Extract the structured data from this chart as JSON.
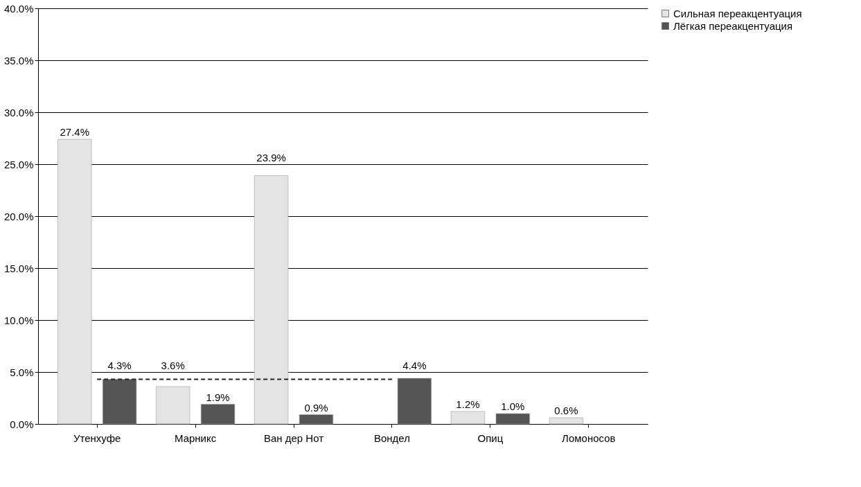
{
  "chart_data": {
    "type": "bar",
    "categories": [
      "Утенхуфе",
      "Марникс",
      "Ван дер Нот",
      "Вондел",
      "Опиц",
      "Ломоносов"
    ],
    "series": [
      {
        "name": "Сильная переакцентуация",
        "color": "#e4e4e4",
        "values": [
          27.4,
          3.6,
          23.9,
          null,
          1.2,
          0.6
        ],
        "value_labels": [
          "27.4%",
          "3.6%",
          "23.9%",
          null,
          "1.2%",
          "0.6%"
        ]
      },
      {
        "name": "Лёгкая переакцентуация",
        "color": "#555555",
        "values": [
          4.3,
          1.9,
          0.9,
          4.4,
          1.0,
          null
        ],
        "value_labels": [
          "4.3%",
          "1.9%",
          "0.9%",
          "4.4%",
          "1.0%",
          null
        ]
      },
      {
        "type": "line",
        "color": "#222222",
        "line_style": "dashed",
        "values": [
          4.3,
          4.3,
          4.3,
          4.3,
          null,
          null
        ]
      }
    ],
    "ylim": [
      0,
      40
    ],
    "yticks": [
      {
        "value": 0,
        "label": "0.0%"
      },
      {
        "value": 5,
        "label": "5.0%"
      },
      {
        "value": 10,
        "label": "10.0%"
      },
      {
        "value": 15,
        "label": "15.0%"
      },
      {
        "value": 20,
        "label": "20.0%"
      },
      {
        "value": 25,
        "label": "25.0%"
      },
      {
        "value": 30,
        "label": "30.0%"
      },
      {
        "value": 35,
        "label": "35.0%"
      },
      {
        "value": 40,
        "label": "40.0%"
      }
    ],
    "grid": "y",
    "legend": "right"
  }
}
